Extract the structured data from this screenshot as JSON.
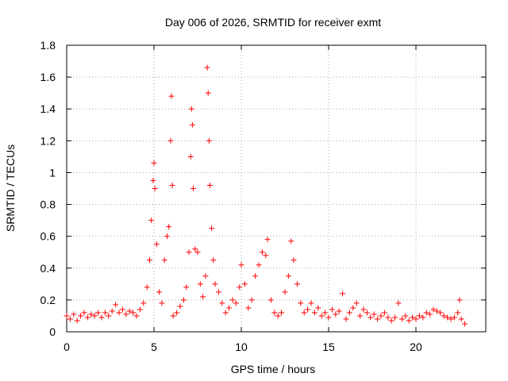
{
  "chart_data": {
    "type": "scatter",
    "title": "Day 006 of 2026, SRMTID for receiver exmt",
    "xlabel": "GPS time / hours",
    "ylabel": "SRMTID / TECUs",
    "xlim": [
      0,
      24
    ],
    "ylim": [
      0,
      1.8
    ],
    "xticks": [
      "0",
      "5",
      "10",
      "15",
      "20"
    ],
    "yticks": [
      "0",
      "0.2",
      "0.4",
      "0.6",
      "0.8",
      "1",
      "1.2",
      "1.4",
      "1.6",
      "1.8"
    ],
    "grid": true,
    "marker": "+",
    "marker_color": "#ff0000",
    "series": [
      {
        "name": "SRMTID",
        "points": [
          [
            0.0,
            0.1
          ],
          [
            0.2,
            0.08
          ],
          [
            0.4,
            0.11
          ],
          [
            0.6,
            0.07
          ],
          [
            0.8,
            0.1
          ],
          [
            1.0,
            0.12
          ],
          [
            1.2,
            0.09
          ],
          [
            1.4,
            0.11
          ],
          [
            1.6,
            0.1
          ],
          [
            1.8,
            0.12
          ],
          [
            2.0,
            0.09
          ],
          [
            2.2,
            0.12
          ],
          [
            2.4,
            0.1
          ],
          [
            2.6,
            0.13
          ],
          [
            2.8,
            0.17
          ],
          [
            3.0,
            0.12
          ],
          [
            3.2,
            0.14
          ],
          [
            3.4,
            0.11
          ],
          [
            3.6,
            0.13
          ],
          [
            3.8,
            0.12
          ],
          [
            4.0,
            0.1
          ],
          [
            4.2,
            0.14
          ],
          [
            4.4,
            0.18
          ],
          [
            4.6,
            0.28
          ],
          [
            4.75,
            0.45
          ],
          [
            4.85,
            0.7
          ],
          [
            4.95,
            0.95
          ],
          [
            5.0,
            1.06
          ],
          [
            5.05,
            0.9
          ],
          [
            5.15,
            0.55
          ],
          [
            5.3,
            0.25
          ],
          [
            5.45,
            0.18
          ],
          [
            5.6,
            0.45
          ],
          [
            5.75,
            0.6
          ],
          [
            5.85,
            0.66
          ],
          [
            5.95,
            1.2
          ],
          [
            6.0,
            1.48
          ],
          [
            6.05,
            0.92
          ],
          [
            6.1,
            0.1
          ],
          [
            6.3,
            0.12
          ],
          [
            6.5,
            0.16
          ],
          [
            6.7,
            0.2
          ],
          [
            6.85,
            0.28
          ],
          [
            7.0,
            0.5
          ],
          [
            7.1,
            1.1
          ],
          [
            7.15,
            1.4
          ],
          [
            7.2,
            1.3
          ],
          [
            7.25,
            0.9
          ],
          [
            7.35,
            0.52
          ],
          [
            7.5,
            0.5
          ],
          [
            7.65,
            0.3
          ],
          [
            7.8,
            0.22
          ],
          [
            7.95,
            0.35
          ],
          [
            8.05,
            1.66
          ],
          [
            8.1,
            1.5
          ],
          [
            8.15,
            1.2
          ],
          [
            8.2,
            0.92
          ],
          [
            8.3,
            0.65
          ],
          [
            8.4,
            0.45
          ],
          [
            8.5,
            0.3
          ],
          [
            8.7,
            0.25
          ],
          [
            8.9,
            0.18
          ],
          [
            9.1,
            0.12
          ],
          [
            9.3,
            0.15
          ],
          [
            9.5,
            0.2
          ],
          [
            9.7,
            0.18
          ],
          [
            9.9,
            0.28
          ],
          [
            10.0,
            0.42
          ],
          [
            10.2,
            0.3
          ],
          [
            10.4,
            0.15
          ],
          [
            10.6,
            0.2
          ],
          [
            10.8,
            0.35
          ],
          [
            11.0,
            0.42
          ],
          [
            11.2,
            0.5
          ],
          [
            11.4,
            0.48
          ],
          [
            11.5,
            0.58
          ],
          [
            11.7,
            0.2
          ],
          [
            11.9,
            0.12
          ],
          [
            12.1,
            0.1
          ],
          [
            12.3,
            0.12
          ],
          [
            12.5,
            0.25
          ],
          [
            12.7,
            0.35
          ],
          [
            12.85,
            0.57
          ],
          [
            13.0,
            0.45
          ],
          [
            13.2,
            0.3
          ],
          [
            13.4,
            0.18
          ],
          [
            13.6,
            0.12
          ],
          [
            13.8,
            0.14
          ],
          [
            14.0,
            0.18
          ],
          [
            14.2,
            0.12
          ],
          [
            14.4,
            0.15
          ],
          [
            14.6,
            0.1
          ],
          [
            14.8,
            0.12
          ],
          [
            15.0,
            0.09
          ],
          [
            15.2,
            0.14
          ],
          [
            15.4,
            0.11
          ],
          [
            15.6,
            0.13
          ],
          [
            15.8,
            0.24
          ],
          [
            16.0,
            0.08
          ],
          [
            16.2,
            0.12
          ],
          [
            16.4,
            0.15
          ],
          [
            16.6,
            0.18
          ],
          [
            16.8,
            0.1
          ],
          [
            17.0,
            0.14
          ],
          [
            17.2,
            0.12
          ],
          [
            17.4,
            0.09
          ],
          [
            17.6,
            0.11
          ],
          [
            17.8,
            0.08
          ],
          [
            18.0,
            0.1
          ],
          [
            18.2,
            0.12
          ],
          [
            18.4,
            0.09
          ],
          [
            18.6,
            0.07
          ],
          [
            18.8,
            0.09
          ],
          [
            19.0,
            0.18
          ],
          [
            19.2,
            0.08
          ],
          [
            19.4,
            0.1
          ],
          [
            19.6,
            0.07
          ],
          [
            19.8,
            0.09
          ],
          [
            20.0,
            0.08
          ],
          [
            20.2,
            0.1
          ],
          [
            20.4,
            0.09
          ],
          [
            20.6,
            0.12
          ],
          [
            20.8,
            0.11
          ],
          [
            21.0,
            0.14
          ],
          [
            21.2,
            0.13
          ],
          [
            21.4,
            0.12
          ],
          [
            21.6,
            0.1
          ],
          [
            21.8,
            0.09
          ],
          [
            22.0,
            0.08
          ],
          [
            22.2,
            0.09
          ],
          [
            22.4,
            0.12
          ],
          [
            22.5,
            0.2
          ],
          [
            22.6,
            0.08
          ],
          [
            22.8,
            0.05
          ]
        ]
      }
    ]
  }
}
